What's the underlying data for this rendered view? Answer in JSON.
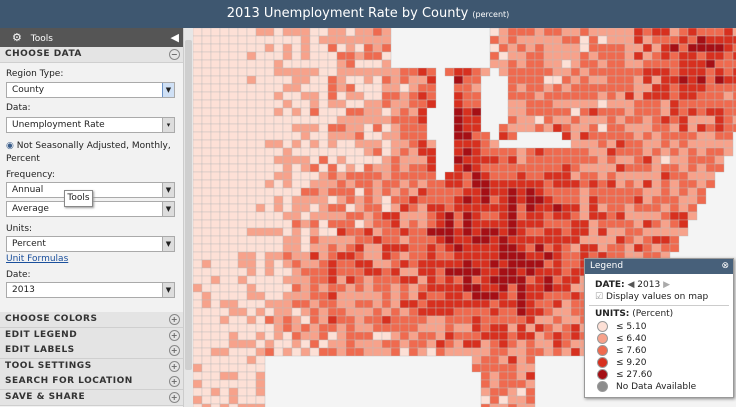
{
  "header": {
    "title": "2013 Unemployment Rate by County",
    "title_suffix": "(percent)"
  },
  "sidebar": {
    "tools_label": "Tools",
    "section": "CHOOSE DATA",
    "fields": [
      {
        "label": "Region Type:",
        "value": "County"
      },
      {
        "label": "Data:",
        "value": "Unemployment Rate"
      }
    ],
    "radio": "Not Seasonally Adjusted, Monthly, Percent",
    "frequency": {
      "label": "Frequency:",
      "value": "Annual",
      "aggregation": "Average"
    },
    "tooltip": "Tools",
    "units": {
      "label": "Units:",
      "value": "Percent",
      "link": "Unit Formulas"
    },
    "date": {
      "label": "Date:",
      "value": "2013"
    },
    "sections": [
      "CHOOSE COLORS",
      "EDIT LEGEND",
      "EDIT LABELS",
      "TOOL SETTINGS",
      "SEARCH FOR LOCATION",
      "SAVE & SHARE"
    ]
  },
  "legend": {
    "title": "Legend",
    "date_label": "DATE:",
    "date": "2013",
    "checkbox": "Display values on map",
    "units_label": "UNITS:",
    "units": "(Percent)",
    "classes": [
      {
        "label": "≤ 5.10",
        "color": "#fde0d6"
      },
      {
        "label": "≤ 6.40",
        "color": "#f7a28b"
      },
      {
        "label": "≤ 7.60",
        "color": "#ef6a4f"
      },
      {
        "label": "≤ 9.20",
        "color": "#d7301f"
      },
      {
        "label": "≤ 27.60",
        "color": "#a50f15"
      },
      {
        "label": "No Data Available",
        "color": "#8c8c8c"
      }
    ]
  }
}
